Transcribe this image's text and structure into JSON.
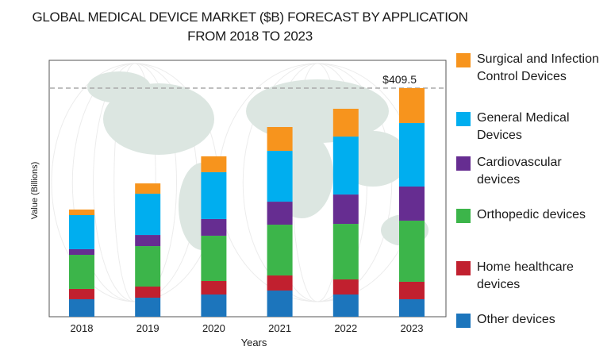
{
  "chart_data": {
    "type": "bar",
    "stacked": true,
    "title": "GLOBAL MEDICAL DEVICE MARKET ($B) FORECAST BY APPLICATION FROM 2018 TO 2023",
    "title_lines": [
      "GLOBAL MEDICAL DEVICE MARKET ($B) FORECAST BY APPLICATION",
      "FROM 2018 TO 2023"
    ],
    "xlabel": "Years",
    "ylabel": "Value (Billions)",
    "categories": [
      "2018",
      "2019",
      "2020",
      "2021",
      "2022",
      "2023"
    ],
    "ylim": [
      0,
      409.5
    ],
    "grid": false,
    "legend_position": "right",
    "series": [
      {
        "name": "Other devices",
        "color": "#1c75bc",
        "values": [
          31.3,
          34.1,
          39.8,
          46.9,
          39.8,
          31.3
        ]
      },
      {
        "name": "Home healthcare devices",
        "color": "#c1202f",
        "values": [
          18.5,
          19.9,
          24.2,
          27.0,
          27.0,
          31.3
        ]
      },
      {
        "name": "Orthopedic devices",
        "color": "#3cb54a",
        "values": [
          61.1,
          72.5,
          81.1,
          91.0,
          99.5,
          109.5
        ]
      },
      {
        "name": "Cardiovascular devices",
        "color": "#662d91",
        "values": [
          10.0,
          19.9,
          29.9,
          41.2,
          52.6,
          61.1
        ]
      },
      {
        "name": "General Medical Devices",
        "color": "#00aeef",
        "values": [
          61.1,
          73.9,
          83.9,
          91.0,
          103.8,
          113.8
        ]
      },
      {
        "name": "Surgical and Infection Control Devices",
        "color": "#f7941d",
        "values": [
          10.0,
          18.5,
          28.4,
          42.7,
          49.8,
          62.5
        ]
      }
    ],
    "annotations": [
      {
        "text": "$409.5",
        "value": 409.5,
        "style": "dashed reference line"
      }
    ]
  },
  "legend": [
    {
      "label": "Surgical and Infection Control Devices",
      "color": "#f7941d"
    },
    {
      "label": "General Medical Devices",
      "color": "#00aeef"
    },
    {
      "label": "Cardiovascular devices",
      "color": "#662d91"
    },
    {
      "label": "Orthopedic devices",
      "color": "#3cb54a"
    },
    {
      "label": "Home healthcare devices",
      "color": "#c1202f"
    },
    {
      "label": "Other devices",
      "color": "#1c75bc"
    }
  ]
}
